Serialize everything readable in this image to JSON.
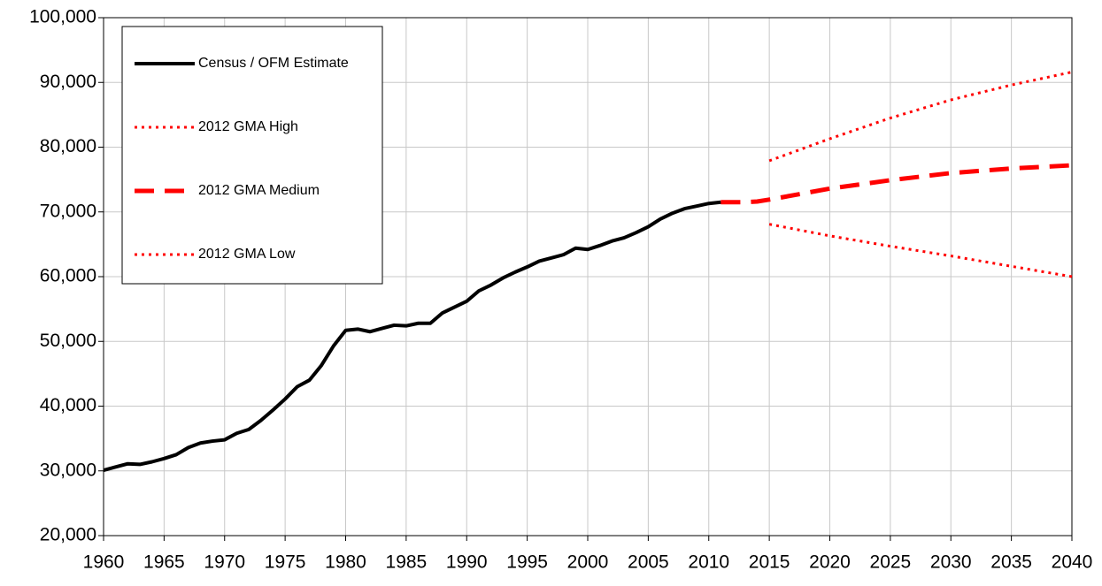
{
  "chart_data": {
    "type": "line",
    "xlim": [
      1960,
      2040
    ],
    "xticks": [
      1960,
      1965,
      1970,
      1975,
      1980,
      1985,
      1990,
      1995,
      2000,
      2005,
      2010,
      2015,
      2020,
      2025,
      2030,
      2035,
      2040
    ],
    "ylim": [
      20000,
      100000
    ],
    "yticks": [
      {
        "value": 20000,
        "label": "20,000"
      },
      {
        "value": 30000,
        "label": "30,000"
      },
      {
        "value": 40000,
        "label": "40,000"
      },
      {
        "value": 50000,
        "label": "50,000"
      },
      {
        "value": 60000,
        "label": "60,000"
      },
      {
        "value": 70000,
        "label": "70,000"
      },
      {
        "value": 80000,
        "label": "80,000"
      },
      {
        "value": 90000,
        "label": "90,000"
      },
      {
        "value": 100000,
        "label": "100,000"
      }
    ],
    "grid": true,
    "legend": "upper left",
    "series": [
      {
        "name": "Census / OFM Estimate",
        "color": "#000000",
        "linestyle": "solid",
        "x": [
          1960,
          1961,
          1962,
          1963,
          1964,
          1965,
          1966,
          1967,
          1968,
          1969,
          1970,
          1971,
          1972,
          1973,
          1974,
          1975,
          1976,
          1977,
          1978,
          1979,
          1980,
          1981,
          1982,
          1983,
          1984,
          1985,
          1986,
          1987,
          1988,
          1989,
          1990,
          1991,
          1992,
          1993,
          1994,
          1995,
          1996,
          1997,
          1998,
          1999,
          2000,
          2001,
          2002,
          2003,
          2004,
          2005,
          2006,
          2007,
          2008,
          2009,
          2010,
          2011
        ],
        "values": [
          30100,
          30600,
          31100,
          31000,
          31400,
          31900,
          32500,
          33600,
          34300,
          34600,
          34800,
          35800,
          36400,
          37800,
          39400,
          41100,
          43000,
          44000,
          46300,
          49300,
          51700,
          51900,
          51500,
          52000,
          52500,
          52400,
          52800,
          52800,
          54400,
          55300,
          56200,
          57800,
          58700,
          59800,
          60700,
          61500,
          62400,
          62900,
          63400,
          64400,
          64200,
          64800,
          65500,
          66000,
          66800,
          67700,
          68900,
          69800,
          70500,
          70900,
          71300,
          71500
        ]
      },
      {
        "name": "2012 GMA High",
        "color": "#ff0000",
        "linestyle": "dotted",
        "x": [
          2015,
          2020,
          2025,
          2030,
          2035,
          2040
        ],
        "values": [
          77900,
          81300,
          84500,
          87300,
          89600,
          91600
        ]
      },
      {
        "name": "2012 GMA Medium",
        "color": "#ff0000",
        "linestyle": "dashed",
        "x": [
          2011,
          2012,
          2013,
          2014,
          2015,
          2020,
          2025,
          2030,
          2035,
          2040
        ],
        "values": [
          71500,
          71500,
          71500,
          71600,
          71900,
          73600,
          74900,
          76000,
          76700,
          77200
        ]
      },
      {
        "name": "2012 GMA Low",
        "color": "#ff0000",
        "linestyle": "dotted",
        "x": [
          2015,
          2020,
          2025,
          2030,
          2035,
          2040
        ],
        "values": [
          68100,
          66300,
          64700,
          63200,
          61600,
          60000
        ]
      }
    ]
  }
}
